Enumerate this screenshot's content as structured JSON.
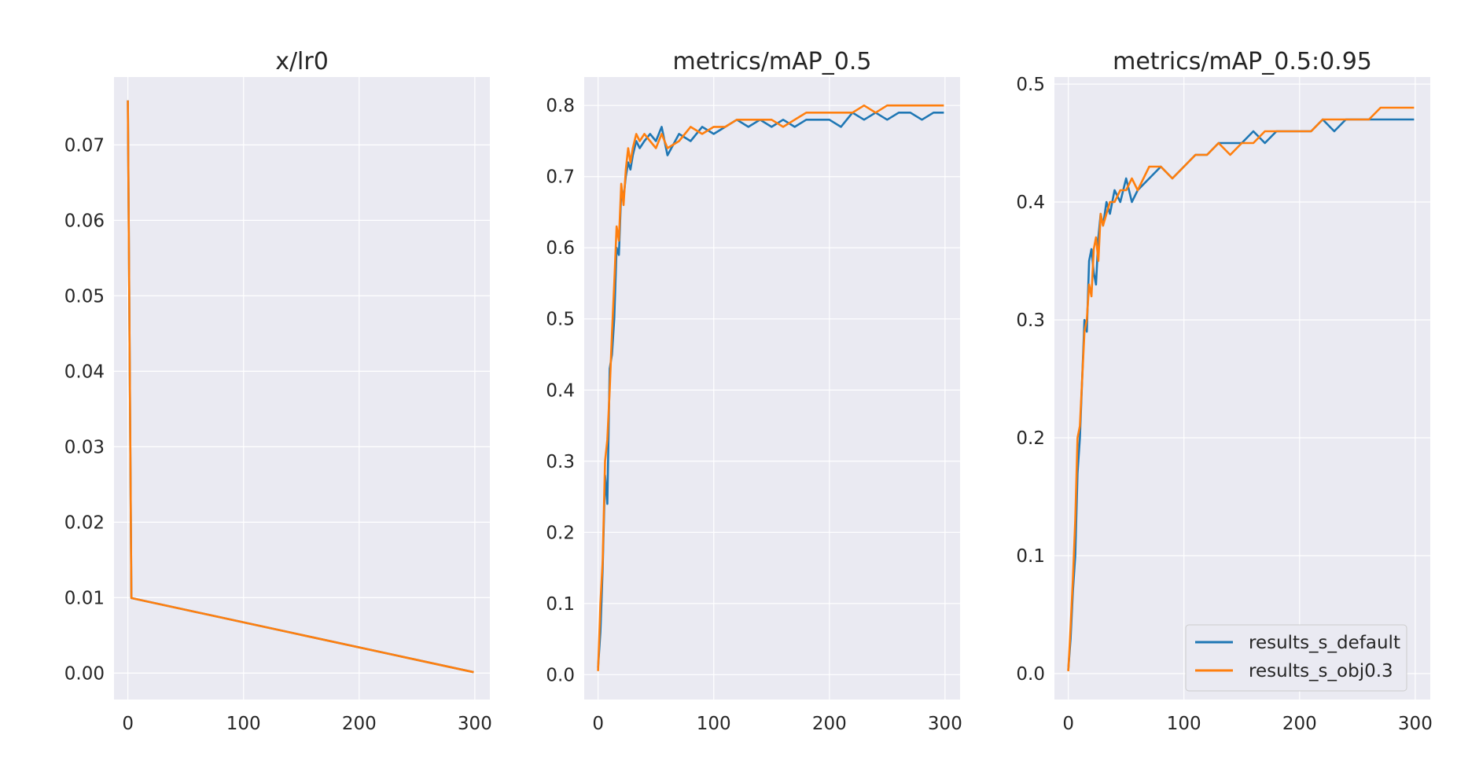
{
  "colors": {
    "default": "#1f77b4",
    "obj": "#ff7f0e",
    "plot_bg": "#eaeaf2",
    "grid": "#ffffff"
  },
  "legend": {
    "placement": "lower-right",
    "items": [
      "results_s_default",
      "results_s_obj0.3"
    ]
  },
  "chart_data": [
    {
      "type": "line",
      "title": "x/lr0",
      "xlim": [
        -12,
        313
      ],
      "ylim": [
        -0.0035,
        0.079
      ],
      "x_ticks": [
        0,
        100,
        200,
        300
      ],
      "x_tick_labels": [
        "0",
        "100",
        "200",
        "300"
      ],
      "y_ticks": [
        0.0,
        0.01,
        0.02,
        0.03,
        0.04,
        0.05,
        0.06,
        0.07
      ],
      "y_tick_labels": [
        "0.00",
        "0.01",
        "0.02",
        "0.03",
        "0.04",
        "0.05",
        "0.06",
        "0.07"
      ],
      "grid": true,
      "series": [
        {
          "name": "results_s_default",
          "x": [
            0,
            3,
            299
          ],
          "y": [
            0.0759,
            0.00995,
            0.00013
          ]
        },
        {
          "name": "results_s_obj0.3",
          "x": [
            0,
            3,
            299
          ],
          "y": [
            0.0759,
            0.00995,
            0.00013
          ]
        }
      ]
    },
    {
      "type": "line",
      "title": "metrics/mAP_0.5",
      "xlim": [
        -12,
        313
      ],
      "ylim": [
        -0.035,
        0.84
      ],
      "x_ticks": [
        0,
        100,
        200,
        300
      ],
      "x_tick_labels": [
        "0",
        "100",
        "200",
        "300"
      ],
      "y_ticks": [
        0.0,
        0.1,
        0.2,
        0.3,
        0.4,
        0.5,
        0.6,
        0.7,
        0.8
      ],
      "y_tick_labels": [
        "0.0",
        "0.1",
        "0.2",
        "0.3",
        "0.4",
        "0.5",
        "0.6",
        "0.7",
        "0.8"
      ],
      "grid": true,
      "series": [
        {
          "name": "results_s_default",
          "x": [
            0,
            2,
            4,
            6,
            8,
            10,
            12,
            14,
            16,
            18,
            20,
            22,
            24,
            26,
            28,
            30,
            33,
            36,
            40,
            45,
            50,
            55,
            60,
            70,
            80,
            90,
            100,
            110,
            120,
            130,
            140,
            150,
            160,
            170,
            180,
            190,
            200,
            210,
            220,
            230,
            240,
            250,
            260,
            270,
            280,
            290,
            299
          ],
          "y": [
            0.01,
            0.06,
            0.15,
            0.28,
            0.24,
            0.43,
            0.45,
            0.5,
            0.6,
            0.59,
            0.68,
            0.67,
            0.7,
            0.72,
            0.71,
            0.73,
            0.75,
            0.74,
            0.75,
            0.76,
            0.75,
            0.77,
            0.73,
            0.76,
            0.75,
            0.77,
            0.76,
            0.77,
            0.78,
            0.77,
            0.78,
            0.77,
            0.78,
            0.77,
            0.78,
            0.78,
            0.78,
            0.77,
            0.79,
            0.78,
            0.79,
            0.78,
            0.79,
            0.79,
            0.78,
            0.79,
            0.79
          ]
        },
        {
          "name": "results_s_obj0.3",
          "x": [
            0,
            2,
            4,
            6,
            8,
            10,
            12,
            14,
            16,
            18,
            20,
            22,
            24,
            26,
            28,
            30,
            33,
            36,
            40,
            45,
            50,
            55,
            60,
            70,
            80,
            90,
            100,
            110,
            120,
            130,
            140,
            150,
            160,
            170,
            180,
            190,
            200,
            210,
            220,
            230,
            240,
            250,
            260,
            270,
            280,
            290,
            299
          ],
          "y": [
            0.005,
            0.1,
            0.16,
            0.3,
            0.33,
            0.4,
            0.48,
            0.55,
            0.63,
            0.61,
            0.69,
            0.66,
            0.71,
            0.74,
            0.72,
            0.74,
            0.76,
            0.75,
            0.76,
            0.75,
            0.74,
            0.76,
            0.74,
            0.75,
            0.77,
            0.76,
            0.77,
            0.77,
            0.78,
            0.78,
            0.78,
            0.78,
            0.77,
            0.78,
            0.79,
            0.79,
            0.79,
            0.79,
            0.79,
            0.8,
            0.79,
            0.8,
            0.8,
            0.8,
            0.8,
            0.8,
            0.8
          ]
        }
      ]
    },
    {
      "type": "line",
      "title": "metrics/mAP_0.5:0.95",
      "xlim": [
        -12,
        313
      ],
      "ylim": [
        -0.022,
        0.506
      ],
      "x_ticks": [
        0,
        100,
        200,
        300
      ],
      "x_tick_labels": [
        "0",
        "100",
        "200",
        "300"
      ],
      "y_ticks": [
        0.0,
        0.1,
        0.2,
        0.3,
        0.4,
        0.5
      ],
      "y_tick_labels": [
        "0.0",
        "0.1",
        "0.2",
        "0.3",
        "0.4",
        "0.5"
      ],
      "grid": true,
      "series": [
        {
          "name": "results_s_default",
          "x": [
            0,
            2,
            4,
            6,
            8,
            10,
            12,
            14,
            16,
            18,
            20,
            22,
            24,
            26,
            28,
            30,
            33,
            36,
            40,
            45,
            50,
            55,
            60,
            70,
            80,
            90,
            100,
            110,
            120,
            130,
            140,
            150,
            160,
            170,
            180,
            190,
            200,
            210,
            220,
            230,
            240,
            250,
            260,
            270,
            280,
            290,
            299
          ],
          "y": [
            0.003,
            0.03,
            0.07,
            0.1,
            0.17,
            0.2,
            0.25,
            0.3,
            0.29,
            0.35,
            0.36,
            0.34,
            0.33,
            0.37,
            0.39,
            0.38,
            0.4,
            0.39,
            0.41,
            0.4,
            0.42,
            0.4,
            0.41,
            0.42,
            0.43,
            0.42,
            0.43,
            0.44,
            0.44,
            0.45,
            0.45,
            0.45,
            0.46,
            0.45,
            0.46,
            0.46,
            0.46,
            0.46,
            0.47,
            0.46,
            0.47,
            0.47,
            0.47,
            0.47,
            0.47,
            0.47,
            0.47
          ]
        },
        {
          "name": "results_s_obj0.3",
          "x": [
            0,
            2,
            4,
            6,
            8,
            10,
            12,
            14,
            16,
            18,
            20,
            22,
            24,
            26,
            28,
            30,
            33,
            36,
            40,
            45,
            50,
            55,
            60,
            70,
            80,
            90,
            100,
            110,
            120,
            130,
            140,
            150,
            160,
            170,
            180,
            190,
            200,
            210,
            220,
            230,
            240,
            250,
            260,
            270,
            280,
            290,
            299
          ],
          "y": [
            0.002,
            0.04,
            0.08,
            0.13,
            0.2,
            0.21,
            0.25,
            0.29,
            0.3,
            0.33,
            0.32,
            0.36,
            0.37,
            0.35,
            0.39,
            0.38,
            0.39,
            0.4,
            0.4,
            0.41,
            0.41,
            0.42,
            0.41,
            0.43,
            0.43,
            0.42,
            0.43,
            0.44,
            0.44,
            0.45,
            0.44,
            0.45,
            0.45,
            0.46,
            0.46,
            0.46,
            0.46,
            0.46,
            0.47,
            0.47,
            0.47,
            0.47,
            0.47,
            0.48,
            0.48,
            0.48,
            0.48
          ]
        }
      ]
    }
  ]
}
